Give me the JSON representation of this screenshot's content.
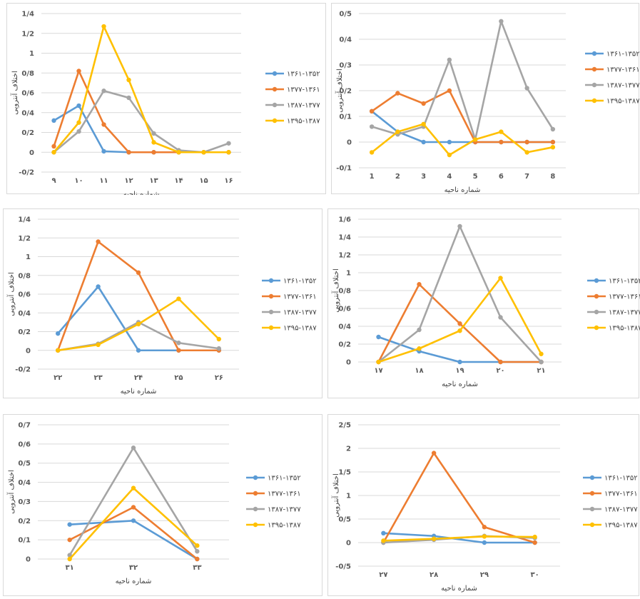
{
  "colors": {
    "s1": "#5b9bd5",
    "s2": "#ed7d31",
    "s3": "#a5a5a5",
    "s4": "#ffc000",
    "grid": "#d9d9d9"
  },
  "legend": [
    "۱۳۶۱-۱۳۵۲",
    "۱۳۷۷-۱۳۶۱",
    "۱۳۸۷-۱۳۷۷",
    "۱۳۹۵-۱۳۸۷"
  ],
  "chart_data": [
    {
      "type": "line",
      "ylabel": "اختلاف آنتروپی",
      "xlabel": "شماره ناحیه",
      "yticks": [
        "-0/2",
        "0",
        "0/2",
        "0/4",
        "0/6",
        "0/8",
        "1",
        "1/2",
        "1/4"
      ],
      "ylim": [
        -0.2,
        1.4
      ],
      "categories": [
        "۹",
        "۱۰",
        "۱۱",
        "۱۲",
        "۱۳",
        "۱۴",
        "۱۵",
        "۱۶"
      ],
      "series": [
        {
          "name": "۱۳۶۱-۱۳۵۲",
          "values": [
            0.32,
            0.47,
            0.01,
            0,
            0,
            0,
            0,
            0
          ]
        },
        {
          "name": "۱۳۷۷-۱۳۶۱",
          "values": [
            0.06,
            0.82,
            0.28,
            0,
            0,
            0,
            0,
            0
          ]
        },
        {
          "name": "۱۳۸۷-۱۳۷۷",
          "values": [
            0,
            0.21,
            0.62,
            0.55,
            0.19,
            0.02,
            0,
            0.09
          ]
        },
        {
          "name": "۱۳۹۵-۱۳۸۷",
          "values": [
            0,
            0.3,
            1.27,
            0.73,
            0.1,
            0,
            0,
            0
          ]
        }
      ]
    },
    {
      "type": "line",
      "ylabel": "اختلاف آنتروپی",
      "xlabel": "شماره ناحیه",
      "yticks": [
        "-0/1",
        "0",
        "0/1",
        "0/2",
        "0/3",
        "0/4",
        "0/5"
      ],
      "ylim": [
        -0.1,
        0.5
      ],
      "categories": [
        "1",
        "2",
        "3",
        "4",
        "5",
        "6",
        "7",
        "8"
      ],
      "series": [
        {
          "name": "۱۳۶۱-۱۳۵۲",
          "values": [
            0.12,
            0.04,
            0,
            0,
            0,
            0,
            0,
            0
          ]
        },
        {
          "name": "۱۳۷۷-۱۳۶۱",
          "values": [
            0.12,
            0.19,
            0.15,
            0.2,
            0,
            0,
            0,
            0
          ]
        },
        {
          "name": "۱۳۸۷-۱۳۷۷",
          "values": [
            0.06,
            0.03,
            0.06,
            0.32,
            0.01,
            0.47,
            0.21,
            0.05
          ]
        },
        {
          "name": "۱۳۹۵-۱۳۸۷",
          "values": [
            -0.04,
            0.04,
            0.07,
            -0.05,
            0.01,
            0.04,
            -0.04,
            -0.02
          ]
        }
      ]
    },
    {
      "type": "line",
      "ylabel": "اختلاف آنتروپی",
      "xlabel": "شماره ناحیه",
      "yticks": [
        "-0/2",
        "0",
        "0/2",
        "0/4",
        "0/6",
        "0/8",
        "1",
        "1/2",
        "1/4"
      ],
      "ylim": [
        -0.2,
        1.4
      ],
      "categories": [
        "۲۲",
        "۲۳",
        "۲۴",
        "۲۵",
        "۲۶"
      ],
      "series": [
        {
          "name": "۱۳۶۱-۱۳۵۲",
          "values": [
            0.18,
            0.68,
            0,
            0,
            0
          ]
        },
        {
          "name": "۱۳۷۷-۱۳۶۱",
          "values": [
            0,
            1.16,
            0.83,
            0,
            0
          ]
        },
        {
          "name": "۱۳۸۷-۱۳۷۷",
          "values": [
            0,
            0.07,
            0.3,
            0.08,
            0.02
          ]
        },
        {
          "name": "۱۳۹۵-۱۳۸۷",
          "values": [
            0,
            0.06,
            0.28,
            0.55,
            0.12
          ]
        }
      ]
    },
    {
      "type": "line",
      "ylabel": "اختلاف آنتروپی",
      "xlabel": "شماره ناحیه",
      "yticks": [
        "0",
        "0/2",
        "0/4",
        "0/6",
        "0/8",
        "1",
        "1/2",
        "1/4",
        "1/6"
      ],
      "ylim": [
        0,
        1.6
      ],
      "categories": [
        "۱۷",
        "۱۸",
        "۱۹",
        "۲۰",
        "۲۱"
      ],
      "series": [
        {
          "name": "۱۳۶۱-۱۳۵۲",
          "values": [
            0.28,
            0.12,
            0,
            0,
            0
          ]
        },
        {
          "name": "۱۳۷۷-۱۳۶۱",
          "values": [
            0,
            0.87,
            0.43,
            0,
            0
          ]
        },
        {
          "name": "۱۳۸۷-۱۳۷۷",
          "values": [
            0,
            0.36,
            1.52,
            0.5,
            0
          ]
        },
        {
          "name": "۱۳۹۵-۱۳۸۷",
          "values": [
            0,
            0.15,
            0.35,
            0.94,
            0.09
          ]
        }
      ]
    },
    {
      "type": "line",
      "ylabel": "اختلاف آنتروپی",
      "xlabel": "شماره ناحیه",
      "yticks": [
        "0",
        "0/1",
        "0/2",
        "0/3",
        "0/4",
        "0/5",
        "0/6",
        "0/7"
      ],
      "ylim": [
        0,
        0.7
      ],
      "categories": [
        "۳۱",
        "۳۲",
        "۳۳"
      ],
      "series": [
        {
          "name": "۱۳۶۱-۱۳۵۲",
          "values": [
            0.18,
            0.2,
            0
          ]
        },
        {
          "name": "۱۳۷۷-۱۳۶۱",
          "values": [
            0.1,
            0.27,
            0
          ]
        },
        {
          "name": "۱۳۸۷-۱۳۷۷",
          "values": [
            0.02,
            0.58,
            0.04
          ]
        },
        {
          "name": "۱۳۹۵-۱۳۸۷",
          "values": [
            0,
            0.37,
            0.07
          ]
        }
      ]
    },
    {
      "type": "line",
      "ylabel": "اختلاف آنتروپی",
      "xlabel": "شماره ناحیه",
      "yticks": [
        "-0/5",
        "0",
        "0/5",
        "1",
        "1/5",
        "2",
        "2/5"
      ],
      "ylim": [
        -0.5,
        2.5
      ],
      "categories": [
        "۲۷",
        "۲۸",
        "۲۹",
        "۳۰"
      ],
      "series": [
        {
          "name": "۱۳۶۱-۱۳۵۲",
          "values": [
            0.2,
            0.14,
            0,
            0
          ]
        },
        {
          "name": "۱۳۷۷-۱۳۶۱",
          "values": [
            0,
            1.9,
            0.33,
            0
          ]
        },
        {
          "name": "۱۳۸۷-۱۳۷۷",
          "values": [
            0,
            0.06,
            0.14,
            0.1
          ]
        },
        {
          "name": "۱۳۹۵-۱۳۸۷",
          "values": [
            0.04,
            0.08,
            0.13,
            0.12
          ]
        }
      ]
    }
  ]
}
